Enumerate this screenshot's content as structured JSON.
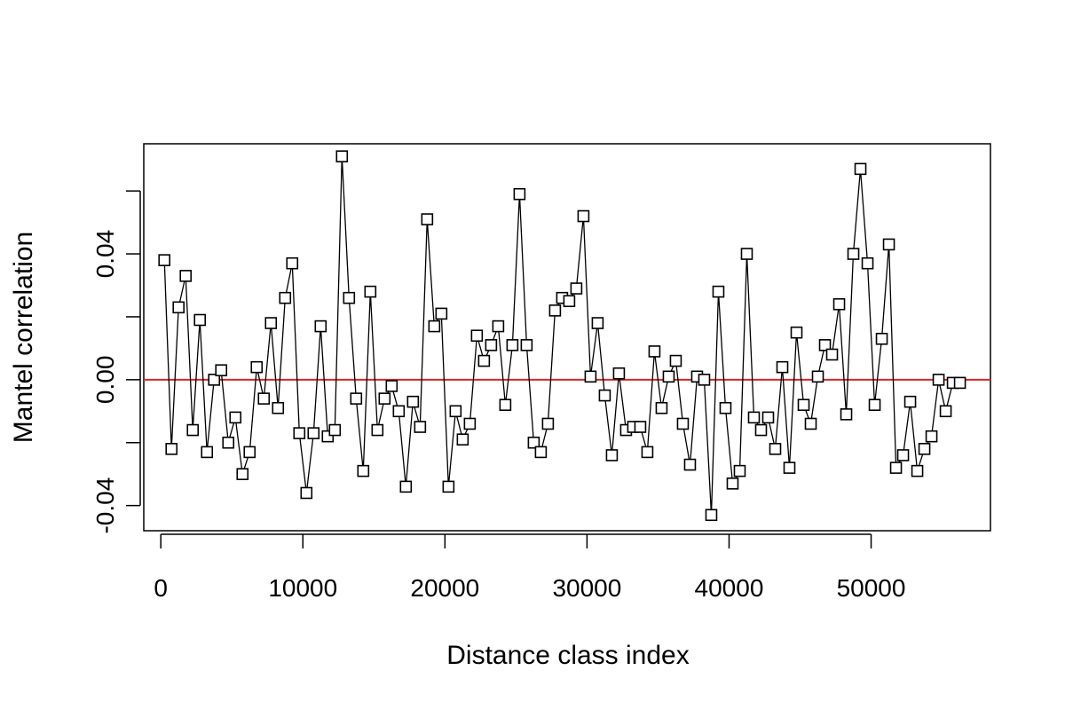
{
  "chart_data": {
    "type": "line",
    "title": "",
    "xlabel": "Distance class index",
    "ylabel": "Mantel correlation",
    "xlim": [
      -1200,
      58400
    ],
    "ylim": [
      -0.048,
      0.075
    ],
    "xticks": [
      0,
      10000,
      20000,
      30000,
      40000,
      50000
    ],
    "xtick_labels": [
      "0",
      "10000",
      "20000",
      "30000",
      "40000",
      "50000"
    ],
    "yticks": [
      -0.04,
      -0.02,
      0.0,
      0.02,
      0.04,
      0.06
    ],
    "ytick_labels": [
      "-0.04",
      "",
      "0.00",
      "",
      "0.04",
      ""
    ],
    "grid": false,
    "reference_line": {
      "y": 0,
      "color": "#d62728"
    },
    "series": [
      {
        "marker": "square",
        "line_color": "#000000",
        "x": [
          250,
          750,
          1250,
          1750,
          2250,
          2750,
          3250,
          3750,
          4250,
          4750,
          5250,
          5750,
          6250,
          6750,
          7250,
          7750,
          8250,
          8750,
          9250,
          9750,
          10250,
          10750,
          11250,
          11750,
          12250,
          12750,
          13250,
          13750,
          14250,
          14750,
          15250,
          15750,
          16250,
          16750,
          17250,
          17750,
          18250,
          18750,
          19250,
          19750,
          20250,
          20750,
          21250,
          21750,
          22250,
          22750,
          23250,
          23750,
          24250,
          24750,
          25250,
          25750,
          26250,
          26750,
          27250,
          27750,
          28250,
          28750,
          29250,
          29750,
          30250,
          30750,
          31250,
          31750,
          32250,
          32750,
          33250,
          33750,
          34250,
          34750,
          35250,
          35750,
          36250,
          36750,
          37250,
          37750,
          38250,
          38750,
          39250,
          39750,
          40250,
          40750,
          41250,
          41750,
          42250,
          42750,
          43250,
          43750,
          44250,
          44750,
          45250,
          45750,
          46250,
          46750,
          47250,
          47750,
          48250,
          48750,
          49250,
          49750,
          50250,
          50750,
          51250,
          51750,
          52250,
          52750,
          53250,
          53750,
          54250,
          54750,
          55250,
          55750,
          56250
        ],
        "y": [
          0.038,
          -0.022,
          0.023,
          0.033,
          -0.016,
          0.019,
          -0.023,
          0.0,
          0.003,
          -0.02,
          -0.012,
          -0.03,
          -0.023,
          0.004,
          -0.006,
          0.018,
          -0.009,
          0.026,
          0.037,
          -0.017,
          -0.036,
          -0.017,
          0.017,
          -0.018,
          -0.016,
          0.071,
          0.026,
          -0.006,
          -0.029,
          0.028,
          -0.016,
          -0.006,
          -0.002,
          -0.01,
          -0.034,
          -0.007,
          -0.015,
          0.051,
          0.017,
          0.021,
          -0.034,
          -0.01,
          -0.019,
          -0.014,
          0.014,
          0.006,
          0.011,
          0.017,
          -0.008,
          0.011,
          0.059,
          0.011,
          -0.02,
          -0.023,
          -0.014,
          0.022,
          0.026,
          0.025,
          0.029,
          0.052,
          0.001,
          0.018,
          -0.005,
          -0.024,
          0.002,
          -0.016,
          -0.015,
          -0.015,
          -0.023,
          0.009,
          -0.009,
          0.001,
          0.006,
          -0.014,
          -0.027,
          0.001,
          0.0,
          -0.043,
          0.028,
          -0.009,
          -0.033,
          -0.029,
          0.04,
          -0.012,
          -0.016,
          -0.012,
          -0.022,
          0.004,
          -0.028,
          0.015,
          -0.008,
          -0.014,
          0.001,
          0.011,
          0.008,
          0.024,
          -0.011,
          0.04,
          0.067,
          0.037,
          -0.008,
          0.013,
          0.043,
          -0.028,
          -0.024,
          -0.007,
          -0.029,
          -0.022,
          -0.018,
          0.0,
          -0.01,
          -0.001,
          -0.001
        ]
      }
    ]
  }
}
